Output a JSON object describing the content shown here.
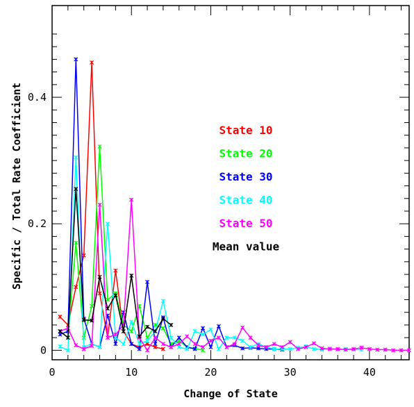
{
  "chart_data": {
    "type": "line",
    "xlabel": "Change of State",
    "ylabel": "Specific / Total Rate Coefficient",
    "xlim": [
      0,
      45
    ],
    "ylim": [
      -0.015,
      0.545
    ],
    "xticks": [
      "0",
      "10",
      "20",
      "30",
      "40"
    ],
    "yticks": [
      "0",
      "0.2",
      "0.4"
    ],
    "grid": false,
    "legend_position": "center-right",
    "series": [
      {
        "name": "State 10",
        "color": "#ff0000",
        "x": [
          1,
          2,
          3,
          4,
          5,
          6,
          7,
          8,
          9,
          10,
          11,
          12,
          13,
          14
        ],
        "y": [
          0.053,
          0.04,
          0.1,
          0.15,
          0.455,
          0.09,
          0.02,
          0.126,
          0.03,
          0.01,
          0.005,
          0.01,
          0.005,
          0.002
        ]
      },
      {
        "name": "State 20",
        "color": "#00ff00",
        "x": [
          1,
          2,
          3,
          4,
          5,
          6,
          7,
          8,
          9,
          10,
          11,
          12,
          13,
          14,
          15,
          16,
          17,
          18,
          19
        ],
        "y": [
          0.03,
          0.02,
          0.17,
          0.02,
          0.07,
          0.322,
          0.08,
          0.09,
          0.04,
          0.03,
          0.07,
          0.02,
          0.04,
          0.035,
          0.01,
          0.015,
          0.005,
          0.003,
          0.0
        ]
      },
      {
        "name": "State 30",
        "color": "#0000ff",
        "x": [
          1,
          2,
          3,
          4,
          5,
          6,
          7,
          8,
          9,
          10,
          11,
          12,
          13,
          14,
          15,
          16,
          17,
          18,
          19,
          20,
          21,
          22,
          23,
          24,
          25,
          26,
          27,
          28,
          29
        ],
        "y": [
          0.025,
          0.03,
          0.46,
          0.05,
          0.01,
          0.005,
          0.055,
          0.01,
          0.06,
          0.01,
          0.002,
          0.108,
          0.01,
          0.052,
          0.005,
          0.02,
          0.005,
          0.002,
          0.035,
          0.005,
          0.038,
          0.005,
          0.008,
          0.003,
          0.004,
          0.003,
          0.002,
          0.002,
          0.001
        ]
      },
      {
        "name": "State 40",
        "color": "#00ffff",
        "x": [
          1,
          2,
          3,
          4,
          5,
          6,
          7,
          8,
          9,
          10,
          11,
          12,
          13,
          14,
          15,
          16,
          17,
          18,
          19,
          20,
          21,
          22,
          23,
          24,
          25,
          26,
          27,
          28,
          29,
          30,
          31,
          32,
          33,
          34,
          35,
          36,
          37,
          38,
          39
        ],
        "y": [
          0.006,
          0.0,
          0.305,
          0.005,
          0.01,
          0.005,
          0.2,
          0.02,
          0.01,
          0.045,
          0.01,
          0.015,
          0.03,
          0.078,
          0.02,
          0.005,
          0.002,
          0.03,
          0.025,
          0.033,
          0.002,
          0.02,
          0.02,
          0.015,
          0.005,
          0.01,
          0.005,
          0.002,
          0.002,
          0.002,
          0.004,
          0.006,
          0.002,
          0.001,
          0.003,
          0.001,
          0.002,
          0.001,
          0.001
        ]
      },
      {
        "name": "State 50",
        "color": "#ff00ff",
        "x": [
          1,
          2,
          3,
          4,
          5,
          6,
          7,
          8,
          9,
          10,
          11,
          12,
          13,
          14,
          15,
          16,
          17,
          18,
          19,
          20,
          21,
          22,
          23,
          24,
          25,
          26,
          27,
          28,
          29,
          30,
          31,
          32,
          33,
          34,
          35,
          36,
          37,
          38,
          39,
          40,
          41,
          42,
          43,
          44,
          45
        ],
        "y": [
          0.03,
          0.035,
          0.008,
          0.002,
          0.007,
          0.23,
          0.02,
          0.025,
          0.04,
          0.238,
          0.02,
          0.0,
          0.02,
          0.01,
          0.005,
          0.01,
          0.022,
          0.01,
          0.005,
          0.015,
          0.02,
          0.005,
          0.01,
          0.036,
          0.02,
          0.008,
          0.005,
          0.01,
          0.005,
          0.013,
          0.002,
          0.005,
          0.011,
          0.003,
          0.002,
          0.002,
          0.001,
          0.002,
          0.004,
          0.002,
          0.001,
          0.001,
          0.0,
          0.0,
          0.0
        ]
      },
      {
        "name": "Mean value",
        "color": "#000000",
        "x": [
          1,
          2,
          3,
          4,
          5,
          6,
          7,
          8,
          9,
          10,
          11,
          12,
          13,
          14,
          15
        ],
        "y": [
          0.03,
          0.02,
          0.255,
          0.048,
          0.047,
          0.116,
          0.066,
          0.087,
          0.03,
          0.118,
          0.022,
          0.037,
          0.03,
          0.05,
          0.04
        ]
      }
    ]
  }
}
